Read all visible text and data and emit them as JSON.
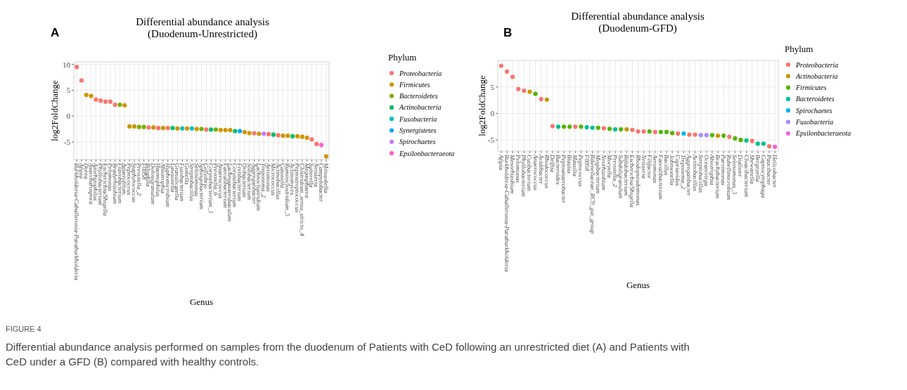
{
  "chart_data": [
    {
      "type": "scatter",
      "title": "Differential abundance analysis",
      "subtitle": "(Duodenum-Unrestricted)",
      "xlabel": "Genus",
      "ylabel": "log2FoldChange",
      "legend_title": "Phylum",
      "legend": "right",
      "grid": true,
      "marker": "circle",
      "ylim": [
        -8.4,
        10.5
      ],
      "yticks": [
        -5,
        0,
        5,
        10
      ],
      "annotations": [
        "A",
        "FIGURE 4",
        "Differential abundance analysis performed on samples from the duodenum of Patients with CeD following an unrestricted diet (A) and Patients with CeD under a GFD (B) compared with healthy controls."
      ],
      "categories": [
        "Burkholderia-Caballeronia-Paraburkholderia",
        "Afipia",
        "Dorea",
        "Asaccharospora",
        "Azorhizophilus",
        "Phyllobacterium",
        "Escherichia/Shigella",
        "Pelomonas",
        "Bradyrhizobium",
        "Flavobacterium",
        "Anaerofilum",
        "Peptococcus",
        "Staphylococcus",
        "Prevotella_2",
        "F0058",
        "Bilophila",
        "Dolosigranulum",
        "Haemophilus",
        "Abiotrophia",
        "Hyphomicrobium",
        "Lawsonella",
        "Granulicatella",
        "Fusobacterium",
        "Gemella",
        "Streptobacillus",
        "Selenomonas",
        "Sphingobacterium",
        "Cellvibrio",
        "Corynebacterium_1",
        "Prevotella_6",
        "Anaerococcus",
        "Faecalibacterium",
        "Lachnoanaerobaculum",
        "Corynebacterium",
        "Fretibacterium",
        "Oribacterium",
        "Solobacterium",
        "Aggregatibacter",
        "Lachnoclostridium",
        "Treponema_2",
        "Aeromonas",
        "Micrococcus",
        "Actinobacillus",
        "Catonella",
        "Ruminiclostridium_5",
        "Actinomyces",
        "Peptostreptococcus",
        "Clostridium_sensu_stricto_4",
        "Megasphaera",
        "Sutterella",
        "Neisseria",
        "Campylobacter",
        "Mitsuokella"
      ],
      "series": [
        {
          "name": "Proteobacteria",
          "color": "#f8766d",
          "values": [
            9.5,
            6.9,
            null,
            null,
            3.2,
            3.0,
            2.8,
            2.8,
            2.2,
            null,
            null,
            null,
            null,
            null,
            null,
            -2.2,
            null,
            -2.3,
            null,
            -2.3,
            null,
            null,
            null,
            null,
            null,
            null,
            null,
            -2.6,
            null,
            null,
            null,
            null,
            null,
            null,
            null,
            null,
            null,
            -3.3,
            null,
            null,
            -3.5,
            null,
            -3.7,
            null,
            null,
            null,
            null,
            null,
            null,
            -4.5,
            -5.4,
            null,
            null
          ]
        },
        {
          "name": "Firmicutes",
          "color": "#cd9600",
          "values": [
            null,
            null,
            4.1,
            3.9,
            null,
            null,
            null,
            null,
            null,
            null,
            2.1,
            -2.0,
            -2.0,
            null,
            null,
            null,
            -2.2,
            null,
            -2.3,
            null,
            null,
            -2.4,
            null,
            -2.4,
            null,
            -2.5,
            null,
            null,
            null,
            null,
            -2.7,
            -2.7,
            -2.7,
            null,
            null,
            -3.1,
            -3.3,
            null,
            -3.4,
            null,
            null,
            null,
            null,
            -3.8,
            -3.8,
            null,
            -3.9,
            -4.0,
            -4.2,
            null,
            null,
            null,
            -7.8
          ]
        },
        {
          "name": "Bacteroidetes",
          "color": "#7cae00",
          "values": [
            null,
            null,
            null,
            null,
            null,
            null,
            null,
            null,
            null,
            2.2,
            null,
            null,
            null,
            -2.1,
            -2.1,
            null,
            null,
            null,
            null,
            null,
            null,
            null,
            null,
            null,
            null,
            null,
            -2.5,
            null,
            null,
            -2.6,
            null,
            null,
            null,
            null,
            null,
            null,
            null,
            null,
            null,
            null,
            null,
            null,
            null,
            null,
            null,
            null,
            null,
            null,
            null,
            null,
            null,
            null,
            null
          ]
        },
        {
          "name": "Actinobacteria",
          "color": "#00be67",
          "values": [
            null,
            null,
            null,
            null,
            null,
            null,
            null,
            null,
            null,
            null,
            null,
            null,
            null,
            null,
            null,
            null,
            null,
            null,
            null,
            null,
            -2.3,
            null,
            null,
            null,
            null,
            null,
            null,
            null,
            -2.6,
            null,
            null,
            null,
            null,
            -2.9,
            null,
            null,
            null,
            null,
            null,
            null,
            null,
            -3.6,
            null,
            null,
            null,
            -3.9,
            null,
            null,
            null,
            null,
            null,
            null,
            null
          ]
        },
        {
          "name": "Fusobacteria",
          "color": "#00bfc4",
          "values": [
            null,
            null,
            null,
            null,
            null,
            null,
            null,
            null,
            null,
            null,
            null,
            null,
            null,
            null,
            null,
            null,
            null,
            null,
            null,
            null,
            null,
            null,
            -2.4,
            null,
            -2.4,
            null,
            null,
            null,
            null,
            null,
            null,
            null,
            null,
            null,
            null,
            null,
            null,
            null,
            null,
            null,
            null,
            null,
            null,
            null,
            null,
            null,
            null,
            null,
            null,
            null,
            null,
            null,
            null
          ]
        },
        {
          "name": "Synergistetes",
          "color": "#00a9ff",
          "values": [
            null,
            null,
            null,
            null,
            null,
            null,
            null,
            null,
            null,
            null,
            null,
            null,
            null,
            null,
            null,
            null,
            null,
            null,
            null,
            null,
            null,
            null,
            null,
            null,
            null,
            null,
            null,
            null,
            null,
            null,
            null,
            null,
            null,
            null,
            -2.9,
            null,
            null,
            null,
            null,
            null,
            null,
            null,
            null,
            null,
            null,
            null,
            null,
            null,
            null,
            null,
            null,
            null,
            null
          ]
        },
        {
          "name": "Spirochaetes",
          "color": "#c77cff",
          "values": [
            null,
            null,
            null,
            null,
            null,
            null,
            null,
            null,
            null,
            null,
            null,
            null,
            null,
            null,
            null,
            null,
            null,
            null,
            null,
            null,
            null,
            null,
            null,
            null,
            null,
            null,
            null,
            null,
            null,
            null,
            null,
            null,
            null,
            null,
            null,
            null,
            null,
            null,
            null,
            -3.4,
            null,
            null,
            null,
            null,
            null,
            null,
            null,
            null,
            null,
            null,
            null,
            null,
            null
          ]
        },
        {
          "name": "Epsilonbacteraeota",
          "color": "#ff61cc",
          "values": [
            null,
            null,
            null,
            null,
            null,
            null,
            null,
            null,
            null,
            null,
            null,
            null,
            null,
            null,
            null,
            null,
            null,
            null,
            null,
            null,
            null,
            null,
            null,
            null,
            null,
            null,
            null,
            null,
            null,
            null,
            null,
            null,
            null,
            null,
            null,
            null,
            null,
            null,
            null,
            null,
            null,
            null,
            null,
            null,
            null,
            null,
            null,
            null,
            null,
            null,
            null,
            -5.6,
            null
          ]
        }
      ]
    },
    {
      "type": "scatter",
      "title": "Differential abundance analysis",
      "subtitle": "(Duodenum-GFD)",
      "xlabel": "Genus",
      "ylabel": "log2FoldChange",
      "legend_title": "Phylum",
      "legend": "right",
      "grid": true,
      "marker": "circle",
      "ylim": [
        -7.1,
        10.0
      ],
      "yticks": [
        -5,
        0,
        5
      ],
      "annotations": [
        "B"
      ],
      "categories": [
        "Afipia",
        "Burkholderia-Caballeronia-Paraburkholderia",
        "Mesorhizobium",
        "Pelomonas",
        "Phyllobacterium",
        "Cutibacterium",
        "Anaerococcus",
        "Acidibacter",
        "Rhodococcus",
        "Delftia",
        "Bacteroides",
        "Peptoanaerobacter",
        "Blautia",
        "Massilia",
        "Peptococcus",
        "F0058",
        "Rikenellaceae_RC9_gut_group",
        "Mogibacterium",
        "Neorhizobium",
        "Moryella",
        "Prevotella_2",
        "Subdoligranulum",
        "Bifidobacterium",
        "Escherichia/Shigella",
        "Rhodopseudomonas",
        "Neisseria",
        "Filifactor",
        "Aeromonas",
        "Faecalibacterium",
        "Bacillus",
        "Johnsonella",
        "Cupriavidus",
        "Treponema_2",
        "Aggregatibacter",
        "Actinobacillus",
        "Streptobacillus",
        "Oceanivirga",
        "Abiotrophia",
        "Brachybacterium",
        "Parvimonas",
        "Rubellimicrobium",
        "Selenomonas_3",
        "Dialister",
        "Cloacibacterium",
        "Shewanella",
        "Bergeyella",
        "Capnocytophaga",
        "Paucibacter",
        "Helicobacter"
      ],
      "series": [
        {
          "name": "Proteobacteria",
          "color": "#f8766d",
          "values": [
            9.0,
            7.9,
            6.9,
            4.6,
            4.3,
            null,
            null,
            2.7,
            null,
            -2.4,
            null,
            null,
            null,
            -2.5,
            null,
            null,
            null,
            null,
            -2.8,
            null,
            null,
            null,
            null,
            -3.1,
            -3.4,
            -3.4,
            null,
            -3.5,
            null,
            null,
            null,
            -3.8,
            null,
            -4.0,
            -4.0,
            null,
            null,
            null,
            null,
            null,
            -4.4,
            null,
            null,
            null,
            -5.2,
            null,
            null,
            -6.2,
            null
          ]
        },
        {
          "name": "Actinobacteria",
          "color": "#c49a00",
          "values": [
            null,
            null,
            null,
            null,
            null,
            4.1,
            null,
            null,
            2.6,
            null,
            null,
            null,
            null,
            null,
            null,
            null,
            null,
            null,
            null,
            null,
            null,
            null,
            -3.0,
            null,
            null,
            null,
            null,
            null,
            null,
            null,
            null,
            null,
            null,
            null,
            null,
            null,
            null,
            null,
            -4.2,
            null,
            null,
            null,
            null,
            null,
            null,
            null,
            null,
            null,
            null
          ]
        },
        {
          "name": "Firmicutes",
          "color": "#53b400",
          "values": [
            null,
            null,
            null,
            null,
            null,
            null,
            3.7,
            null,
            null,
            null,
            null,
            -2.5,
            -2.5,
            null,
            -2.5,
            null,
            null,
            -2.7,
            null,
            -2.9,
            null,
            -3.0,
            null,
            null,
            null,
            null,
            -3.4,
            null,
            -3.5,
            -3.5,
            -3.7,
            null,
            null,
            null,
            null,
            null,
            null,
            -4.1,
            null,
            -4.2,
            null,
            -4.7,
            -5.0,
            null,
            null,
            null,
            null,
            null,
            null
          ]
        },
        {
          "name": "Bacteroidetes",
          "color": "#00c094",
          "values": [
            null,
            null,
            null,
            null,
            null,
            null,
            null,
            null,
            null,
            null,
            -2.5,
            null,
            null,
            null,
            null,
            -2.6,
            -2.7,
            null,
            null,
            null,
            -3.0,
            null,
            null,
            null,
            null,
            null,
            null,
            null,
            null,
            null,
            null,
            null,
            null,
            null,
            null,
            null,
            null,
            null,
            null,
            null,
            null,
            null,
            null,
            -5.1,
            null,
            -5.7,
            -5.7,
            null,
            null
          ]
        },
        {
          "name": "Spirochaetes",
          "color": "#00b6eb",
          "values": [
            null,
            null,
            null,
            null,
            null,
            null,
            null,
            null,
            null,
            null,
            null,
            null,
            null,
            null,
            null,
            null,
            null,
            null,
            null,
            null,
            null,
            null,
            null,
            null,
            null,
            null,
            null,
            null,
            null,
            null,
            null,
            null,
            -3.8,
            null,
            null,
            null,
            null,
            null,
            null,
            null,
            null,
            null,
            null,
            null,
            null,
            null,
            null,
            null,
            null
          ]
        },
        {
          "name": "Fusobacteria",
          "color": "#a58aff",
          "values": [
            null,
            null,
            null,
            null,
            null,
            null,
            null,
            null,
            null,
            null,
            null,
            null,
            null,
            null,
            null,
            null,
            null,
            null,
            null,
            null,
            null,
            null,
            null,
            null,
            null,
            null,
            null,
            null,
            null,
            null,
            null,
            null,
            null,
            null,
            null,
            -4.1,
            -4.1,
            null,
            null,
            null,
            null,
            null,
            null,
            null,
            null,
            null,
            null,
            null,
            null
          ]
        },
        {
          "name": "Epsilonbacteraeota",
          "color": "#fb61d7",
          "values": [
            null,
            null,
            null,
            null,
            null,
            null,
            null,
            null,
            null,
            null,
            null,
            null,
            null,
            null,
            null,
            null,
            null,
            null,
            null,
            null,
            null,
            null,
            null,
            null,
            null,
            null,
            null,
            null,
            null,
            null,
            null,
            null,
            null,
            null,
            null,
            null,
            null,
            null,
            null,
            null,
            null,
            null,
            null,
            null,
            null,
            null,
            null,
            null,
            -6.3
          ]
        }
      ]
    }
  ]
}
